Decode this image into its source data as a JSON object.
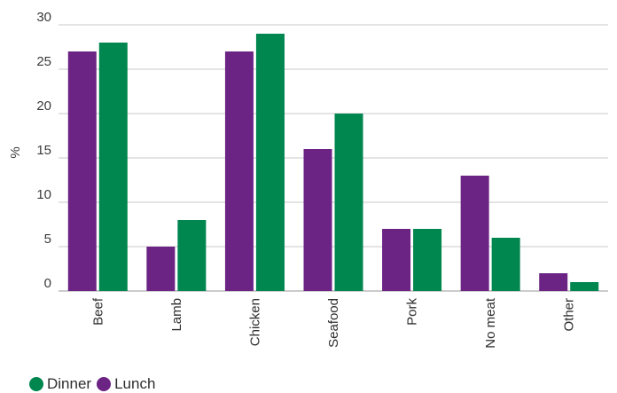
{
  "chart_data": {
    "type": "bar",
    "categories": [
      "Beef",
      "Lamb",
      "Chicken",
      "Seafood",
      "Pork",
      "No meat",
      "Other"
    ],
    "series": [
      {
        "name": "Lunch",
        "color": "#6b2384",
        "values": [
          27,
          5,
          27,
          16,
          7,
          13,
          2
        ]
      },
      {
        "name": "Dinner",
        "color": "#00864f",
        "values": [
          28,
          8,
          29,
          20,
          7,
          6,
          1
        ]
      }
    ],
    "ylabel": "%",
    "xlabel": "",
    "title": "",
    "ylim": [
      0,
      30
    ],
    "yticks": [
      0,
      5,
      10,
      15,
      20,
      25,
      30
    ],
    "grid": true,
    "legend_position": "bottom-left",
    "legend_order": [
      "Dinner",
      "Lunch"
    ]
  }
}
